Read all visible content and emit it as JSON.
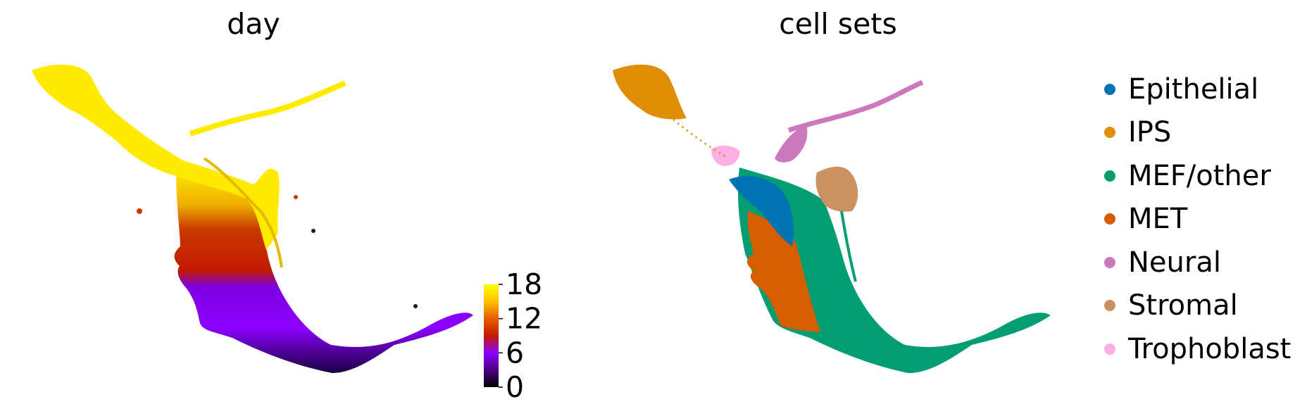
{
  "chart_data": [
    {
      "type": "scatter",
      "title": "day",
      "xlabel": "",
      "ylabel": "",
      "color_variable": "day",
      "colorbar": {
        "ticks": [
          "0",
          "6",
          "12",
          "18"
        ],
        "range": [
          0,
          18
        ],
        "colormap": [
          "#000000",
          "#4b0082",
          "#8b00ff",
          "#c21a00",
          "#e65c00",
          "#ffc000",
          "#ffff00"
        ]
      },
      "grid": false,
      "axes_visible": false
    },
    {
      "type": "scatter",
      "title": "cell sets",
      "xlabel": "",
      "ylabel": "",
      "grid": false,
      "axes_visible": false,
      "legend_position": "right",
      "series": [
        {
          "name": "Epithelial",
          "color": "#0173b2"
        },
        {
          "name": "IPS",
          "color": "#de8f05"
        },
        {
          "name": "MEF/other",
          "color": "#029e73"
        },
        {
          "name": "MET",
          "color": "#d55e00"
        },
        {
          "name": "Neural",
          "color": "#cc78bc"
        },
        {
          "name": "Stromal",
          "color": "#ca9161"
        },
        {
          "name": "Trophoblast",
          "color": "#fbafe4"
        }
      ]
    }
  ]
}
